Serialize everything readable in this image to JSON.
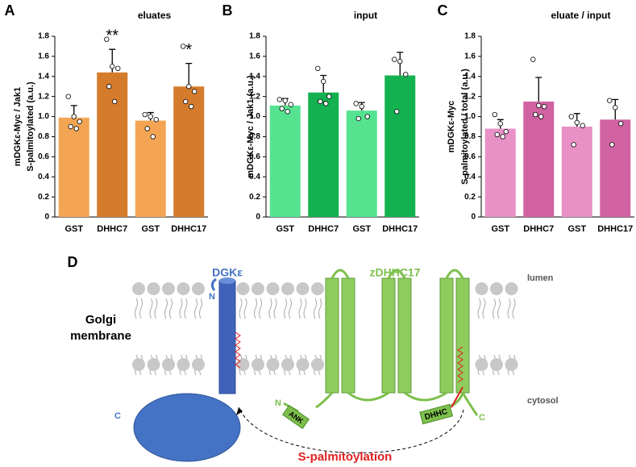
{
  "chart_data": [
    {
      "type": "bar",
      "panel": "A",
      "title": "eluates",
      "ylabel": [
        "mDGKε-Myc / Jak1",
        "S-palmitoylated (a.u.)"
      ],
      "categories": [
        "GST",
        "DHHC7",
        "GST",
        "DHHC17"
      ],
      "values": [
        0.99,
        1.44,
        0.96,
        1.3
      ],
      "errors": [
        0.12,
        0.23,
        0.08,
        0.23
      ],
      "colors": [
        "#f3a553",
        "#d57b2c",
        "#f3a553",
        "#d57b2c"
      ],
      "points": [
        [
          1.2,
          1.0,
          0.95,
          0.9,
          0.88
        ],
        [
          1.77,
          1.5,
          1.48,
          1.3,
          1.15
        ],
        [
          1.02,
          1.0,
          0.97,
          0.88,
          0.8
        ],
        [
          1.7,
          1.3,
          1.25,
          1.15,
          1.1
        ]
      ],
      "annotations": [
        null,
        "**",
        null,
        "*"
      ],
      "ylim": [
        0,
        1.8
      ],
      "yticks": [
        0,
        0.2,
        0.4,
        0.6,
        0.8,
        {
          "value": 1,
          "label": "1.0"
        },
        1.2,
        1.4,
        1.6,
        1.8
      ]
    },
    {
      "type": "bar",
      "panel": "B",
      "title": "input",
      "ylabel": [
        "mDGKε-Myc / Jak1 (a.u.)"
      ],
      "categories": [
        "GST",
        "DHHC7",
        "GST",
        "DHHC17"
      ],
      "values": [
        1.11,
        1.24,
        1.06,
        1.41
      ],
      "errors": [
        0.07,
        0.17,
        0.08,
        0.23
      ],
      "colors": [
        "#55e390",
        "#14b150",
        "#55e390",
        "#14b150"
      ],
      "points": [
        [
          1.17,
          1.16,
          1.12,
          1.08,
          1.05
        ],
        [
          1.48,
          1.35,
          1.2,
          1.15,
          1.13
        ],
        [
          1.13,
          1.1,
          1.0,
          0.98
        ],
        [
          1.57,
          1.55,
          1.42,
          1.05
        ]
      ],
      "annotations": [
        null,
        null,
        null,
        null
      ],
      "ylim": [
        0,
        1.8
      ],
      "yticks": [
        0,
        0.2,
        0.4,
        0.6,
        0.8,
        {
          "value": 1,
          "label": "1.0"
        },
        1.2,
        1.4,
        1.6,
        1.8
      ]
    },
    {
      "type": "bar",
      "panel": "C",
      "title": "eluate / input",
      "ylabel": [
        "mDGKε-Myc",
        "S-palmitoylated / total (a.u.)"
      ],
      "categories": [
        "GST",
        "DHHC7",
        "GST",
        "DHHC17"
      ],
      "values": [
        0.88,
        1.15,
        0.9,
        0.97
      ],
      "errors": [
        0.09,
        0.24,
        0.13,
        0.2
      ],
      "colors": [
        "#e891c6",
        "#d062a2",
        "#e891c6",
        "#d062a2"
      ],
      "points": [
        [
          1.02,
          0.93,
          0.85,
          0.82,
          0.8
        ],
        [
          1.57,
          1.11,
          1.1,
          1.02,
          1.0
        ],
        [
          1.0,
          0.94,
          0.91,
          0.72
        ],
        [
          1.16,
          1.09,
          0.93,
          0.72
        ]
      ],
      "annotations": [
        null,
        null,
        null,
        null
      ],
      "ylim": [
        0,
        1.8
      ],
      "yticks": [
        0,
        0.2,
        0.4,
        0.6,
        0.8,
        {
          "value": 1,
          "label": "1.0"
        },
        1.2,
        1.4,
        1.6,
        1.8
      ]
    }
  ],
  "diagram": {
    "panel": "D",
    "dgk": "DGKε",
    "zdhhc": "zDHHC17",
    "lumen": "lumen",
    "cytosol": "cytosol",
    "membrane": [
      "Golgi",
      "membrane"
    ],
    "dgk_n": "N",
    "dgk_c": "C",
    "zdhhc_n": "N",
    "zdhhc_c": "C",
    "ank": "ANK",
    "dhhc": "DHHC",
    "reaction": "S-palmitoylation"
  }
}
